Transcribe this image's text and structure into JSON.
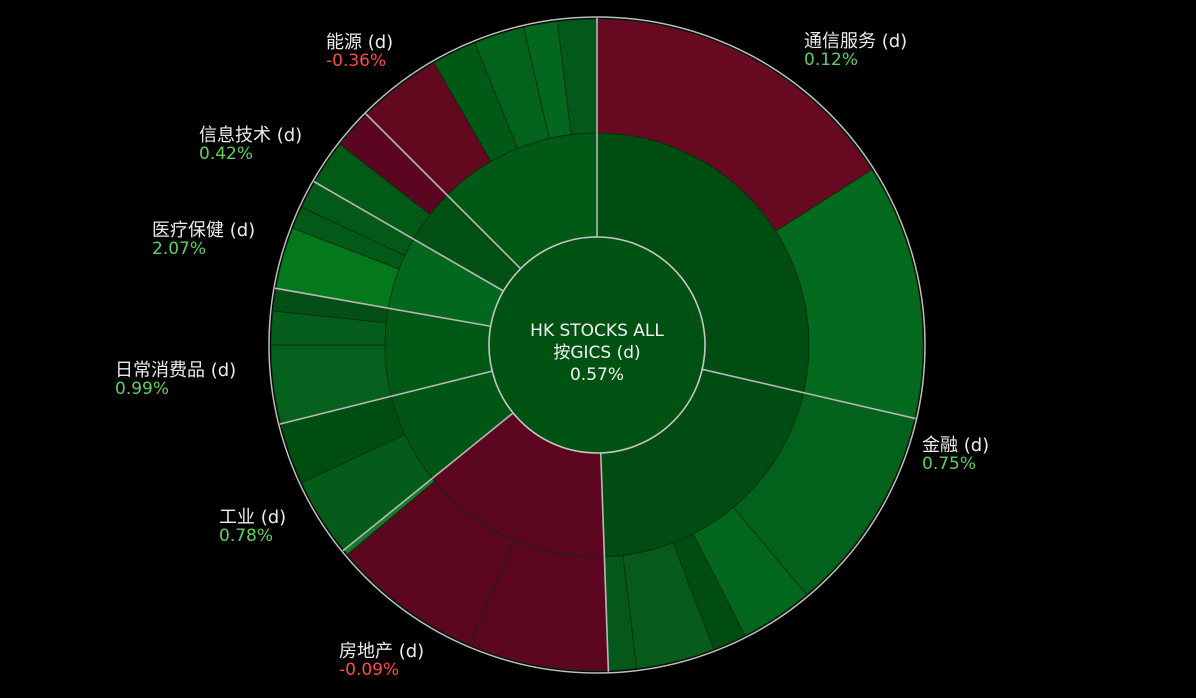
{
  "chart_data": {
    "type": "sunburst",
    "center": {
      "title": "HK STOCKS ALL",
      "subtitle": "按GICS (d)",
      "value": "0.57%"
    },
    "colors": {
      "background": "#000000",
      "positive": "#5fd05f",
      "negative": "#ff4a4a"
    },
    "sectors": [
      {
        "name": "通信服务 (d)",
        "change": "0.12%",
        "sign": "pos"
      },
      {
        "name": "金融 (d)",
        "change": "0.75%",
        "sign": "pos"
      },
      {
        "name": "房地产 (d)",
        "change": "-0.09%",
        "sign": "neg"
      },
      {
        "name": "工业 (d)",
        "change": "0.78%",
        "sign": "pos"
      },
      {
        "name": "日常消费品 (d)",
        "change": "0.99%",
        "sign": "pos"
      },
      {
        "name": "医疗保健 (d)",
        "change": "2.07%",
        "sign": "pos"
      },
      {
        "name": "信息技术 (d)",
        "change": "0.42%",
        "sign": "pos"
      },
      {
        "name": "能源 (d)",
        "change": "-0.36%",
        "sign": "neg"
      }
    ]
  }
}
